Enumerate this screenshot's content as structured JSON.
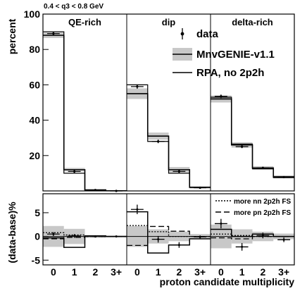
{
  "header_label": "0.4 < q3 < 0.8 GeV",
  "chart_data": {
    "type": "bar",
    "title": "",
    "xlabel": "proton candidate multiplicity",
    "categories": [
      "0",
      "1",
      "2",
      "3+"
    ],
    "panels": [
      {
        "label": "QE-rich",
        "data": [
          89.0,
          11.0,
          0.5,
          0.0
        ],
        "data_err": [
          1.0,
          0.8,
          0.3,
          0.0
        ],
        "mc": [
          88.0,
          12.0,
          0.6,
          0.1
        ],
        "mc_band": [
          1.5,
          1.0,
          0.3,
          0.1
        ],
        "rpa": [
          90.0,
          10.0,
          0.5,
          0.1
        ]
      },
      {
        "label": "dip",
        "data": [
          59.0,
          28.0,
          11.0,
          1.8
        ],
        "data_err": [
          1.2,
          1.0,
          0.8,
          0.4
        ],
        "mc": [
          55.0,
          31.0,
          12.0,
          2.0
        ],
        "mc_band": [
          3.0,
          2.0,
          1.5,
          0.6
        ],
        "rpa": [
          60.0,
          28.0,
          10.0,
          2.0
        ]
      },
      {
        "label": "delta-rich",
        "data": [
          53.5,
          25.0,
          13.0,
          7.8
        ],
        "data_err": [
          1.0,
          0.8,
          0.6,
          0.5
        ],
        "mc": [
          52.0,
          26.0,
          13.0,
          8.0
        ],
        "mc_band": [
          2.0,
          1.5,
          1.0,
          0.8
        ],
        "rpa": [
          53.0,
          26.5,
          12.5,
          7.5
        ]
      }
    ],
    "top_ylabel": "percent",
    "top_ylim": [
      0,
      100
    ],
    "top_yticks": [
      20,
      40,
      60,
      80,
      100
    ],
    "legend_top": [
      {
        "name": "data",
        "marker": "point-with-errorbar"
      },
      {
        "name": "MnvGENIE-v1.1",
        "marker": "line-with-band"
      },
      {
        "name": "RPA, no 2p2h",
        "marker": "line"
      }
    ],
    "bottom_ylabel": "(data-base)%",
    "bottom_ylim": [
      -6,
      9
    ],
    "bottom_yticks": [
      -5,
      0,
      5
    ],
    "bottom_panels": [
      {
        "data": [
          0.5,
          0.1,
          0.0,
          0.0
        ],
        "data_err": [
          0.4,
          0.4,
          0.0,
          0.0
        ],
        "band": [
          2.2,
          1.6,
          0.3,
          0.2
        ],
        "base_mc": [
          -0.3,
          -2.3,
          0.1,
          0.0
        ],
        "nn": [
          0.8,
          0.3,
          0.0,
          0.0
        ],
        "pn": [
          -0.5,
          -0.2,
          0.0,
          0.0
        ]
      },
      {
        "data": [
          5.7,
          -0.6,
          -1.8,
          -0.1
        ],
        "data_err": [
          1.0,
          0.7,
          0.6,
          0.3
        ],
        "band": [
          2.2,
          1.5,
          1.0,
          0.5
        ],
        "base_mc": [
          5.2,
          -3.5,
          -1.8,
          -0.5
        ],
        "nn": [
          2.3,
          1.0,
          0.0,
          0.0
        ],
        "pn": [
          -1.9,
          2.1,
          1.1,
          0.0
        ]
      },
      {
        "data": [
          2.7,
          -2.2,
          0.2,
          -0.7
        ],
        "data_err": [
          1.0,
          0.8,
          0.6,
          0.5
        ],
        "band": [
          2.5,
          1.5,
          1.0,
          0.6
        ],
        "base_mc": [
          1.5,
          0.0,
          0.5,
          0.0
        ],
        "nn": [
          0.5,
          0.2,
          0.0,
          0.0
        ],
        "pn": [
          -0.3,
          -0.5,
          0.0,
          0.0
        ]
      }
    ],
    "legend_bottom": [
      {
        "name": "more nn 2p2h FS",
        "style": "dotted"
      },
      {
        "name": "more pn 2p2h FS",
        "style": "dashed"
      }
    ],
    "colors": {
      "band": "#c8c8c8",
      "line": "#000000"
    }
  }
}
